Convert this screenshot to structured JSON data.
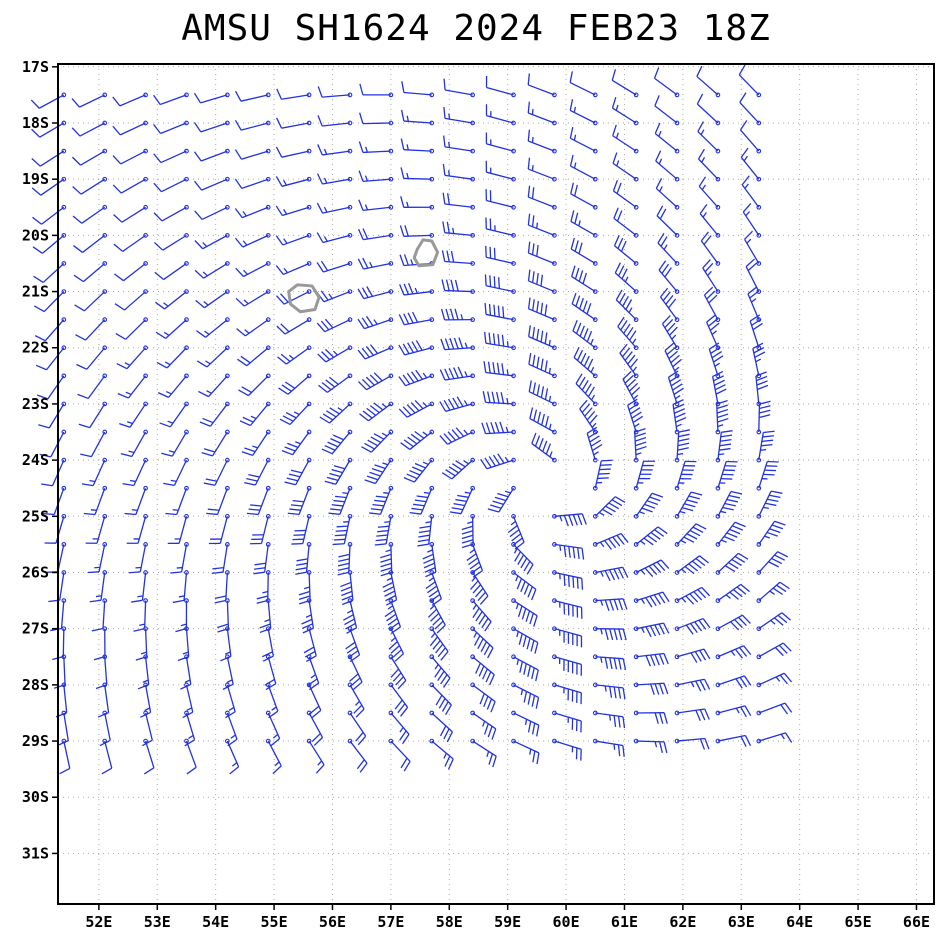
{
  "chart_data": {
    "type": "wind_barbs",
    "title": "AMSU SH1624 2024 FEB23 18Z",
    "xlabel": "",
    "ylabel": "",
    "x_ticks": [
      "52E",
      "53E",
      "54E",
      "55E",
      "56E",
      "57E",
      "58E",
      "59E",
      "60E",
      "61E",
      "62E",
      "63E",
      "64E",
      "65E",
      "66E"
    ],
    "y_ticks": [
      "17S",
      "18S",
      "19S",
      "20S",
      "21S",
      "22S",
      "23S",
      "24S",
      "25S",
      "26S",
      "27S",
      "28S",
      "29S",
      "30S",
      "31S"
    ],
    "xlim": [
      51.3,
      66.3
    ],
    "ylim": [
      -31.9,
      -16.95
    ],
    "grid": true,
    "barb_color": "#2233dd",
    "coast_color": "#999999",
    "data_extent": {
      "lon": [
        51.4,
        63.6
      ],
      "lat": [
        -29.2,
        -17.5
      ]
    },
    "circulation_center": {
      "lon": 59.6,
      "lat": -24.6
    },
    "circulation": "clockwise",
    "max_wind_kt": 55,
    "islands": [
      {
        "name": "Reunion",
        "lon": 55.5,
        "lat": -21.1
      },
      {
        "name": "Mauritius",
        "lon": 57.6,
        "lat": -20.3
      }
    ]
  }
}
